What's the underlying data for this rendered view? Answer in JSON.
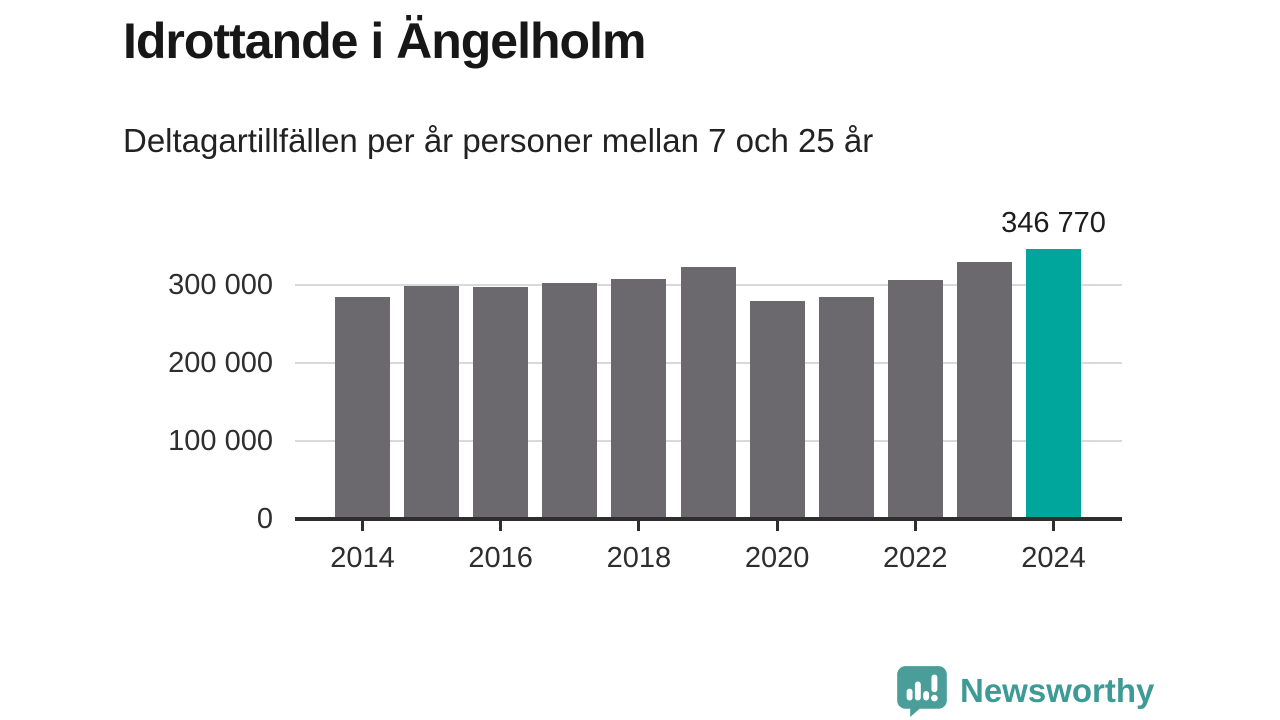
{
  "header": {
    "title": "Idrottande i Ängelholm",
    "subtitle": "Deltagartillfällen per år personer mellan 7 och 25 år"
  },
  "chart_data": {
    "type": "bar",
    "title": "Idrottande i Ängelholm",
    "subtitle": "Deltagartillfällen per år personer mellan 7 och 25 år",
    "categories": [
      2014,
      2015,
      2016,
      2017,
      2018,
      2019,
      2020,
      2021,
      2022,
      2023,
      2024
    ],
    "values": [
      284000,
      299000,
      298000,
      302000,
      308000,
      323000,
      279000,
      285000,
      307000,
      330000,
      346770
    ],
    "highlight_index": 10,
    "annotation": {
      "category": 2024,
      "label": "346 770"
    },
    "y_ticks": [
      {
        "value": 0,
        "label": "0"
      },
      {
        "value": 100000,
        "label": "100 000"
      },
      {
        "value": 200000,
        "label": "200 000"
      },
      {
        "value": 300000,
        "label": "300 000"
      }
    ],
    "x_tick_years": [
      2014,
      2016,
      2018,
      2020,
      2022,
      2024
    ],
    "ylim": [
      0,
      370000
    ],
    "grid": "horizontal",
    "legend": "none",
    "colors": {
      "bar": "#6b696e",
      "highlight": "#00a69b",
      "gridline": "#d9d9d9",
      "axis": "#2e2d30",
      "text": "#1d1d1d"
    }
  },
  "footer": {
    "brand": "Newsworthy",
    "brand_color": "#3d9a96",
    "logo_icon": "newsworthy-speech-bubble-chart-icon",
    "logo_color": "#4a9e99"
  }
}
